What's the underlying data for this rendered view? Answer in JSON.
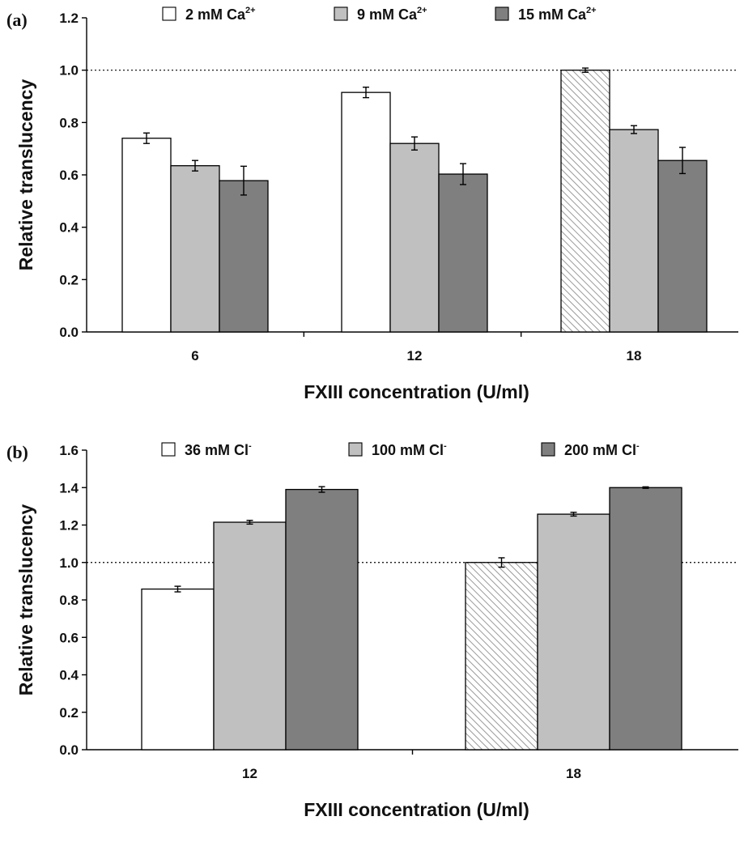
{
  "chart_data": [
    {
      "panel_label": "(a)",
      "type": "bar",
      "categories": [
        "6",
        "12",
        "18"
      ],
      "series": [
        {
          "name": "2 mM Ca",
          "name_sup": "2+",
          "color": "#ffffff",
          "values": [
            0.74,
            0.915,
            1.0
          ],
          "errors": [
            0.02,
            0.02,
            0.008
          ],
          "hatched_index": 2
        },
        {
          "name": "9 mM Ca",
          "name_sup": "2+",
          "color": "#c0c0c0",
          "values": [
            0.635,
            0.72,
            0.773
          ],
          "errors": [
            0.02,
            0.025,
            0.015
          ]
        },
        {
          "name": "15 mM Ca",
          "name_sup": "2+",
          "color": "#7f7f7f",
          "values": [
            0.578,
            0.603,
            0.655
          ],
          "errors": [
            0.055,
            0.04,
            0.05
          ]
        }
      ],
      "xlabel": "FXIII concentration (U/ml)",
      "ylabel": "Relative translucency",
      "ylim": [
        0.0,
        1.2
      ],
      "yticks": [
        "0.0",
        "0.2",
        "0.4",
        "0.6",
        "0.8",
        "1.0",
        "1.2"
      ],
      "reference_line": 1.0,
      "legend_position": "top",
      "grid": false
    },
    {
      "panel_label": "(b)",
      "type": "bar",
      "categories": [
        "12",
        "18"
      ],
      "series": [
        {
          "name": "36 mM Cl",
          "name_sup": "-",
          "color": "#ffffff",
          "values": [
            0.858,
            1.0
          ],
          "errors": [
            0.015,
            0.025
          ],
          "hatched_index": 1
        },
        {
          "name": "100 mM Cl",
          "name_sup": "-",
          "color": "#c0c0c0",
          "values": [
            1.215,
            1.258
          ],
          "errors": [
            0.01,
            0.01
          ]
        },
        {
          "name": "200 mM Cl",
          "name_sup": "-",
          "color": "#7f7f7f",
          "values": [
            1.39,
            1.4
          ],
          "errors": [
            0.015,
            0.004
          ]
        }
      ],
      "xlabel": "FXIII concentration (U/ml)",
      "ylabel": "Relative translucency",
      "ylim": [
        0.0,
        1.6
      ],
      "yticks": [
        "0.0",
        "0.2",
        "0.4",
        "0.6",
        "0.8",
        "1.0",
        "1.2",
        "1.4",
        "1.6"
      ],
      "reference_line": 1.0,
      "legend_position": "top",
      "grid": false
    }
  ]
}
